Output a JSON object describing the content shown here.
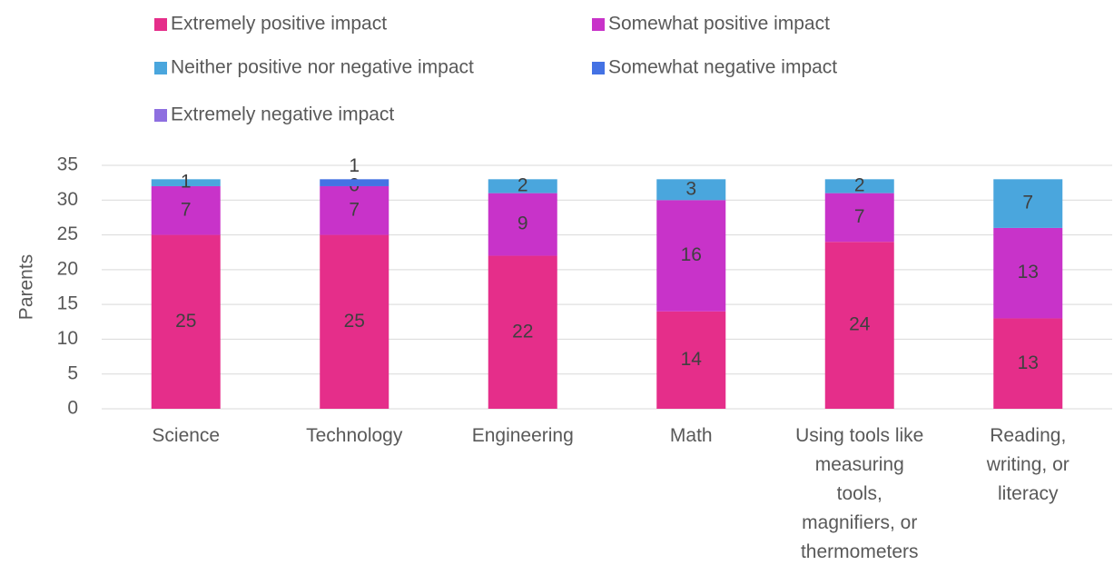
{
  "chart_data": {
    "type": "stacked_bar",
    "y_label": "Parents",
    "categories": [
      "Science",
      "Technology",
      "Engineering",
      "Math",
      "Using tools like measuring tools, magnifiers, or thermometers",
      "Reading, writing, or literacy"
    ],
    "series": [
      {
        "name": "Extremely positive impact",
        "color": "#e52e8a",
        "values": [
          25,
          25,
          22,
          14,
          24,
          13
        ]
      },
      {
        "name": "Somewhat positive impact",
        "color": "#c833c9",
        "values": [
          7,
          7,
          9,
          16,
          7,
          13
        ]
      },
      {
        "name": "Neither positive nor negative impact",
        "color": "#4aa6dd",
        "values": [
          1,
          0,
          2,
          3,
          2,
          7
        ]
      },
      {
        "name": "Somewhat negative impact",
        "color": "#4472e4",
        "values": [
          null,
          1,
          null,
          null,
          null,
          null
        ]
      },
      {
        "name": "Extremely negative impact",
        "color": "#8e6fe0",
        "values": [
          null,
          null,
          null,
          null,
          null,
          null
        ]
      }
    ],
    "ylim": [
      0,
      35
    ],
    "yticks": [
      0,
      5,
      10,
      15,
      20,
      25,
      30,
      35
    ],
    "grid": true,
    "legend": "top"
  }
}
